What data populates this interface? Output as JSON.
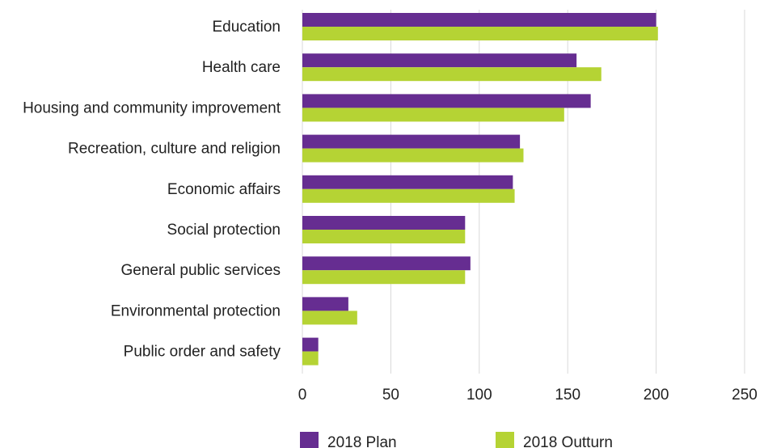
{
  "chart_data": {
    "type": "bar",
    "orientation": "horizontal",
    "categories": [
      "Education",
      "Health care",
      "Housing and community improvement",
      "Recreation, culture and religion",
      "Economic affairs",
      "Social protection",
      "General public services",
      "Environmental protection",
      "Public order and safety"
    ],
    "series": [
      {
        "name": "2018 Plan",
        "color": "#662d91",
        "values": [
          200,
          155,
          163,
          123,
          119,
          92,
          95,
          26,
          9
        ]
      },
      {
        "name": "2018 Outturn",
        "color": "#b5d334",
        "values": [
          201,
          169,
          148,
          125,
          120,
          92,
          92,
          31,
          9
        ]
      }
    ],
    "xlim": [
      0,
      250
    ],
    "xticks": [
      "0",
      "50",
      "100",
      "150",
      "200",
      "250"
    ],
    "grid": "vertical",
    "legend_position": "bottom"
  }
}
